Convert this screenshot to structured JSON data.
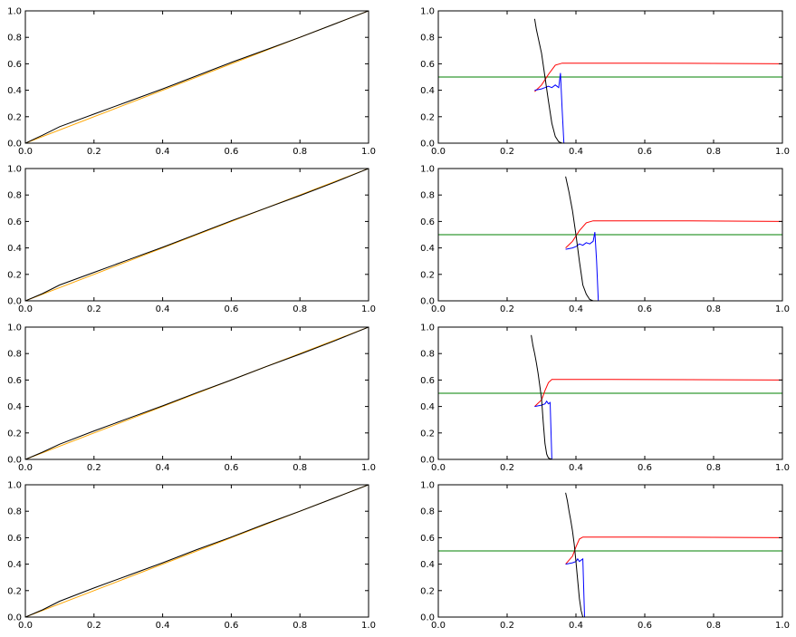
{
  "chart_data": [
    {
      "type": "line",
      "panel": "row1-left",
      "xlim": [
        0,
        1
      ],
      "ylim": [
        0,
        1
      ],
      "xticks": [
        "0.0",
        "0.2",
        "0.4",
        "0.6",
        "0.8",
        "1.0"
      ],
      "yticks": [
        "0.0",
        "0.2",
        "0.4",
        "0.6",
        "0.8",
        "1.0"
      ],
      "series": [
        {
          "color": "#ffa500",
          "x": [
            0,
            1
          ],
          "y": [
            0,
            1
          ]
        },
        {
          "color": "#000000",
          "x": [
            0,
            0.05,
            0.1,
            0.2,
            0.3,
            0.4,
            0.5,
            0.6,
            0.7,
            0.8,
            0.9,
            1.0
          ],
          "y": [
            0,
            0.06,
            0.125,
            0.22,
            0.315,
            0.41,
            0.51,
            0.61,
            0.705,
            0.8,
            0.9,
            1.0
          ]
        }
      ]
    },
    {
      "type": "line",
      "panel": "row1-right",
      "xlim": [
        0,
        1
      ],
      "ylim": [
        0,
        1
      ],
      "xticks": [
        "0.0",
        "0.2",
        "0.4",
        "0.6",
        "0.8",
        "1.0"
      ],
      "yticks": [
        "0.0",
        "0.2",
        "0.4",
        "0.6",
        "0.8",
        "1.0"
      ],
      "series": [
        {
          "color": "#008000",
          "x": [
            0,
            1
          ],
          "y": [
            0.5,
            0.5
          ]
        },
        {
          "color": "#ff0000",
          "x": [
            0.28,
            0.3,
            0.32,
            0.34,
            0.36,
            0.4,
            0.6,
            1.0
          ],
          "y": [
            0.39,
            0.44,
            0.52,
            0.59,
            0.605,
            0.605,
            0.605,
            0.6
          ]
        },
        {
          "color": "#0000ff",
          "x": [
            0.28,
            0.3,
            0.31,
            0.32,
            0.33,
            0.34,
            0.35,
            0.355,
            0.36,
            0.365,
            0.4,
            1.0
          ],
          "y": [
            0.4,
            0.41,
            0.42,
            0.43,
            0.42,
            0.44,
            0.42,
            0.53,
            0.25,
            0.0,
            0.0,
            0.0
          ]
        },
        {
          "color": "#000000",
          "x": [
            0.28,
            0.285,
            0.29,
            0.295,
            0.3,
            0.31,
            0.32,
            0.33,
            0.34,
            0.35,
            0.36,
            0.4,
            1.0
          ],
          "y": [
            0.94,
            0.86,
            0.8,
            0.74,
            0.68,
            0.5,
            0.32,
            0.15,
            0.05,
            0.01,
            0.0,
            0.0,
            0.0
          ]
        }
      ]
    },
    {
      "type": "line",
      "panel": "row2-left",
      "xlim": [
        0,
        1
      ],
      "ylim": [
        0,
        1
      ],
      "xticks": [
        "0.0",
        "0.2",
        "0.4",
        "0.6",
        "0.8",
        "1.0"
      ],
      "yticks": [
        "0.0",
        "0.2",
        "0.4",
        "0.6",
        "0.8",
        "1.0"
      ],
      "series": [
        {
          "color": "#ffa500",
          "x": [
            0,
            1
          ],
          "y": [
            0,
            1
          ]
        },
        {
          "color": "#000000",
          "x": [
            0,
            0.05,
            0.1,
            0.2,
            0.3,
            0.4,
            0.5,
            0.6,
            0.7,
            0.8,
            0.9,
            1.0
          ],
          "y": [
            0,
            0.055,
            0.12,
            0.215,
            0.31,
            0.405,
            0.505,
            0.605,
            0.7,
            0.795,
            0.895,
            1.0
          ]
        }
      ]
    },
    {
      "type": "line",
      "panel": "row2-right",
      "xlim": [
        0,
        1
      ],
      "ylim": [
        0,
        1
      ],
      "xticks": [
        "0.0",
        "0.2",
        "0.4",
        "0.6",
        "0.8",
        "1.0"
      ],
      "yticks": [
        "0.0",
        "0.2",
        "0.4",
        "0.6",
        "0.8",
        "1.0"
      ],
      "series": [
        {
          "color": "#008000",
          "x": [
            0,
            1
          ],
          "y": [
            0.5,
            0.5
          ]
        },
        {
          "color": "#ff0000",
          "x": [
            0.37,
            0.39,
            0.41,
            0.43,
            0.45,
            0.5,
            0.7,
            1.0
          ],
          "y": [
            0.4,
            0.45,
            0.53,
            0.59,
            0.605,
            0.605,
            0.605,
            0.6
          ]
        },
        {
          "color": "#0000ff",
          "x": [
            0.37,
            0.39,
            0.4,
            0.41,
            0.42,
            0.43,
            0.44,
            0.45,
            0.455,
            0.46,
            0.465,
            0.5,
            1.0
          ],
          "y": [
            0.39,
            0.4,
            0.41,
            0.43,
            0.42,
            0.44,
            0.43,
            0.45,
            0.52,
            0.3,
            0.0,
            0.0,
            0.0
          ]
        },
        {
          "color": "#000000",
          "x": [
            0.37,
            0.375,
            0.38,
            0.385,
            0.39,
            0.4,
            0.41,
            0.42,
            0.43,
            0.44,
            0.45,
            0.5,
            1.0
          ],
          "y": [
            0.94,
            0.88,
            0.82,
            0.75,
            0.68,
            0.5,
            0.3,
            0.12,
            0.05,
            0.01,
            0.0,
            0.0,
            0.0
          ]
        }
      ]
    },
    {
      "type": "line",
      "panel": "row3-left",
      "xlim": [
        0,
        1
      ],
      "ylim": [
        0,
        1
      ],
      "xticks": [
        "0.0",
        "0.2",
        "0.4",
        "0.6",
        "0.8",
        "1.0"
      ],
      "yticks": [
        "0.0",
        "0.2",
        "0.4",
        "0.6",
        "0.8",
        "1.0"
      ],
      "series": [
        {
          "color": "#ffa500",
          "x": [
            0,
            1
          ],
          "y": [
            0,
            1
          ]
        },
        {
          "color": "#000000",
          "x": [
            0,
            0.05,
            0.1,
            0.2,
            0.3,
            0.4,
            0.5,
            0.6,
            0.7,
            0.8,
            0.9,
            1.0
          ],
          "y": [
            0,
            0.055,
            0.115,
            0.215,
            0.31,
            0.405,
            0.505,
            0.6,
            0.7,
            0.795,
            0.895,
            1.0
          ]
        }
      ]
    },
    {
      "type": "line",
      "panel": "row3-right",
      "xlim": [
        0,
        1
      ],
      "ylim": [
        0,
        1
      ],
      "xticks": [
        "0.0",
        "0.2",
        "0.4",
        "0.6",
        "0.8",
        "1.0"
      ],
      "yticks": [
        "0.0",
        "0.2",
        "0.4",
        "0.6",
        "0.8",
        "1.0"
      ],
      "series": [
        {
          "color": "#008000",
          "x": [
            0,
            1
          ],
          "y": [
            0.5,
            0.5
          ]
        },
        {
          "color": "#ff0000",
          "x": [
            0.28,
            0.3,
            0.31,
            0.32,
            0.33,
            0.35,
            0.5,
            1.0
          ],
          "y": [
            0.4,
            0.45,
            0.52,
            0.58,
            0.605,
            0.605,
            0.605,
            0.6
          ]
        },
        {
          "color": "#0000ff",
          "x": [
            0.28,
            0.3,
            0.31,
            0.315,
            0.32,
            0.325,
            0.33,
            0.34,
            0.5,
            1.0
          ],
          "y": [
            0.4,
            0.41,
            0.42,
            0.44,
            0.42,
            0.43,
            0.0,
            0.0,
            0.0,
            0.0
          ]
        },
        {
          "color": "#000000",
          "x": [
            0.27,
            0.275,
            0.28,
            0.285,
            0.29,
            0.3,
            0.305,
            0.31,
            0.315,
            0.32,
            0.33,
            0.4,
            1.0
          ],
          "y": [
            0.94,
            0.86,
            0.8,
            0.73,
            0.65,
            0.46,
            0.28,
            0.12,
            0.04,
            0.01,
            0.0,
            0.0,
            0.0
          ]
        }
      ]
    },
    {
      "type": "line",
      "panel": "row4-left",
      "xlim": [
        0,
        1
      ],
      "ylim": [
        0,
        1
      ],
      "xticks": [
        "0.0",
        "0.2",
        "0.4",
        "0.6",
        "0.8",
        "1.0"
      ],
      "yticks": [
        "0.0",
        "0.2",
        "0.4",
        "0.6",
        "0.8",
        "1.0"
      ],
      "series": [
        {
          "color": "#ffa500",
          "x": [
            0,
            1
          ],
          "y": [
            0,
            1
          ]
        },
        {
          "color": "#000000",
          "x": [
            0,
            0.05,
            0.1,
            0.2,
            0.3,
            0.4,
            0.5,
            0.6,
            0.7,
            0.8,
            0.9,
            1.0
          ],
          "y": [
            0,
            0.055,
            0.12,
            0.22,
            0.315,
            0.41,
            0.51,
            0.605,
            0.705,
            0.8,
            0.9,
            1.0
          ]
        }
      ]
    },
    {
      "type": "line",
      "panel": "row4-right",
      "xlim": [
        0,
        1
      ],
      "ylim": [
        0,
        1
      ],
      "xticks": [
        "0.0",
        "0.2",
        "0.4",
        "0.6",
        "0.8",
        "1.0"
      ],
      "yticks": [
        "0.0",
        "0.2",
        "0.4",
        "0.6",
        "0.8",
        "1.0"
      ],
      "series": [
        {
          "color": "#008000",
          "x": [
            0,
            1
          ],
          "y": [
            0.5,
            0.5
          ]
        },
        {
          "color": "#ff0000",
          "x": [
            0.37,
            0.39,
            0.4,
            0.41,
            0.42,
            0.45,
            0.6,
            1.0
          ],
          "y": [
            0.4,
            0.46,
            0.53,
            0.59,
            0.605,
            0.605,
            0.605,
            0.6
          ]
        },
        {
          "color": "#0000ff",
          "x": [
            0.37,
            0.39,
            0.4,
            0.405,
            0.41,
            0.415,
            0.42,
            0.425,
            0.43,
            0.5,
            1.0
          ],
          "y": [
            0.4,
            0.41,
            0.42,
            0.44,
            0.42,
            0.43,
            0.44,
            0.0,
            0.0,
            0.0,
            0.0
          ]
        },
        {
          "color": "#000000",
          "x": [
            0.37,
            0.375,
            0.38,
            0.385,
            0.39,
            0.395,
            0.4,
            0.405,
            0.41,
            0.415,
            0.42,
            0.5,
            1.0
          ],
          "y": [
            0.94,
            0.88,
            0.8,
            0.73,
            0.65,
            0.55,
            0.42,
            0.28,
            0.14,
            0.05,
            0.0,
            0.0,
            0.0
          ]
        }
      ]
    }
  ]
}
